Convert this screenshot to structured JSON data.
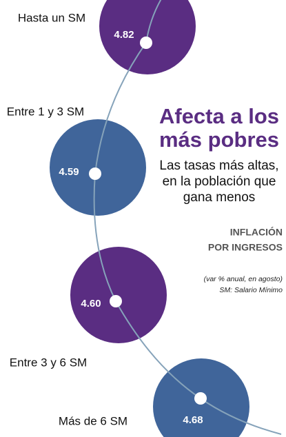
{
  "chart_data": {
    "type": "bubble",
    "title": [
      "Afecta a los",
      "más pobres"
    ],
    "subtitle": [
      "Las tasas más altas,",
      "en la población que",
      "gana menos"
    ],
    "heading": [
      "INFLACIÓN",
      "POR INGRESOS"
    ],
    "notes": [
      "(var % anual, en agosto)",
      "SM: Salario Mínimo"
    ],
    "categories": [
      "Hasta un SM",
      "Entre 1 y 3 SM",
      "Entre 3 y 6 SM",
      "Más de 6 SM"
    ],
    "values": [
      4.82,
      4.59,
      4.6,
      4.68
    ],
    "value_labels": [
      "4.82",
      "4.59",
      "4.60",
      "4.68"
    ],
    "colors": [
      "#5a2d82",
      "#40659a",
      "#5a2d82",
      "#40659a"
    ]
  }
}
